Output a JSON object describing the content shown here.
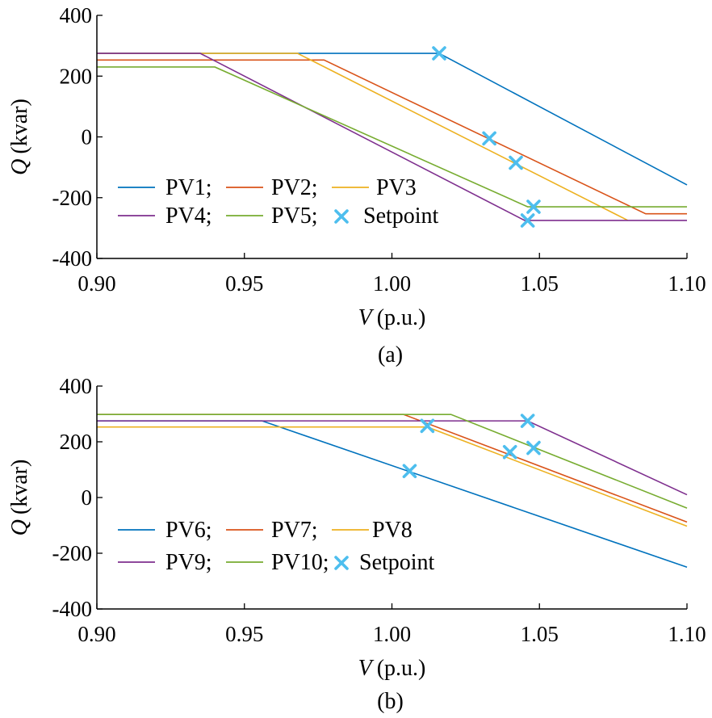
{
  "chart_data": [
    {
      "type": "line",
      "caption": "(a)",
      "xlabel": {
        "var": "V",
        "unit": "(p.u.)"
      },
      "ylabel": {
        "var": "Q",
        "unit": "(kvar)"
      },
      "xlim": [
        0.9,
        1.1
      ],
      "ylim": [
        -400,
        400
      ],
      "xticks": [
        0.9,
        0.95,
        1.0,
        1.05,
        1.1
      ],
      "xtick_labels": [
        "0.90",
        "0.95",
        "1.00",
        "1.05",
        "1.10"
      ],
      "yticks": [
        400,
        200,
        0,
        -200,
        -400
      ],
      "ytick_labels": [
        "400",
        "200",
        "0",
        "-200",
        "-400"
      ],
      "grid": false,
      "legend_placement": "lower-left",
      "series": [
        {
          "name": "PV1",
          "color": "#0072BD",
          "x": [
            0.9,
            1.016,
            1.1
          ],
          "y": [
            275,
            275,
            -158
          ]
        },
        {
          "name": "PV2",
          "color": "#D95319",
          "x": [
            0.9,
            0.977,
            1.086,
            1.1
          ],
          "y": [
            253,
            253,
            -253,
            -253
          ]
        },
        {
          "name": "PV3",
          "color": "#EDB120",
          "x": [
            0.9,
            0.968,
            1.08
          ],
          "y": [
            275,
            275,
            -275
          ]
        },
        {
          "name": "PV4",
          "color": "#7E2F8E",
          "x": [
            0.9,
            0.935,
            1.045,
            1.1
          ],
          "y": [
            275,
            275,
            -275,
            -275
          ]
        },
        {
          "name": "PV5",
          "color": "#77AC30",
          "x": [
            0.9,
            0.94,
            1.046,
            1.1
          ],
          "y": [
            230,
            230,
            -230,
            -230
          ]
        }
      ],
      "setpoint": {
        "name": "Setpoint",
        "color": "#4DBEEE",
        "x": [
          1.016,
          1.033,
          1.042,
          1.048,
          1.046
        ],
        "y": [
          275,
          -5,
          -85,
          -230,
          -275
        ]
      },
      "legend": {
        "rows": [
          [
            {
              "series": "PV1",
              "label": "PV1;"
            },
            {
              "series": "PV2",
              "label": "PV2;"
            },
            {
              "series": "PV3",
              "label": "PV3"
            }
          ],
          [
            {
              "series": "PV4",
              "label": "PV4;"
            },
            {
              "series": "PV5",
              "label": "PV5;"
            },
            {
              "series": "Setpoint",
              "label": "Setpoint"
            }
          ]
        ]
      }
    },
    {
      "type": "line",
      "caption": "(b)",
      "xlabel": {
        "var": "V",
        "unit": "(p.u.)"
      },
      "ylabel": {
        "var": "Q",
        "unit": "(kvar)"
      },
      "xlim": [
        0.9,
        1.1
      ],
      "ylim": [
        -400,
        400
      ],
      "xticks": [
        0.9,
        0.95,
        1.0,
        1.05,
        1.1
      ],
      "xtick_labels": [
        "0.90",
        "0.95",
        "1.00",
        "1.05",
        "1.10"
      ],
      "yticks": [
        400,
        200,
        0,
        -200,
        -400
      ],
      "ytick_labels": [
        "400",
        "200",
        "0",
        "-200",
        "-400"
      ],
      "grid": false,
      "legend_placement": "lower-left",
      "series": [
        {
          "name": "PV6",
          "color": "#0072BD",
          "x": [
            0.9,
            0.956,
            1.1
          ],
          "y": [
            275,
            275,
            -250
          ]
        },
        {
          "name": "PV7",
          "color": "#D95319",
          "x": [
            0.9,
            1.004,
            1.1
          ],
          "y": [
            298,
            298,
            -88
          ]
        },
        {
          "name": "PV8",
          "color": "#EDB120",
          "x": [
            0.9,
            1.012,
            1.1
          ],
          "y": [
            253,
            253,
            -103
          ]
        },
        {
          "name": "PV9",
          "color": "#7E2F8E",
          "x": [
            0.9,
            1.046,
            1.1
          ],
          "y": [
            275,
            275,
            10
          ]
        },
        {
          "name": "PV10",
          "color": "#77AC30",
          "x": [
            0.9,
            1.02,
            1.1
          ],
          "y": [
            298,
            298,
            -38
          ]
        }
      ],
      "setpoint": {
        "name": "Setpoint",
        "color": "#4DBEEE",
        "x": [
          1.006,
          1.012,
          1.04,
          1.048,
          1.046
        ],
        "y": [
          95,
          257,
          163,
          178,
          275
        ]
      },
      "legend": {
        "rows": [
          [
            {
              "series": "PV6",
              "label": "PV6;"
            },
            {
              "series": "PV7",
              "label": "PV7;"
            },
            {
              "series": "PV8",
              "label": "PV8"
            }
          ],
          [
            {
              "series": "PV9",
              "label": "PV9;"
            },
            {
              "series": "PV10",
              "label": "PV10;"
            },
            {
              "series": "Setpoint",
              "label": "Setpoint"
            }
          ]
        ]
      }
    }
  ]
}
